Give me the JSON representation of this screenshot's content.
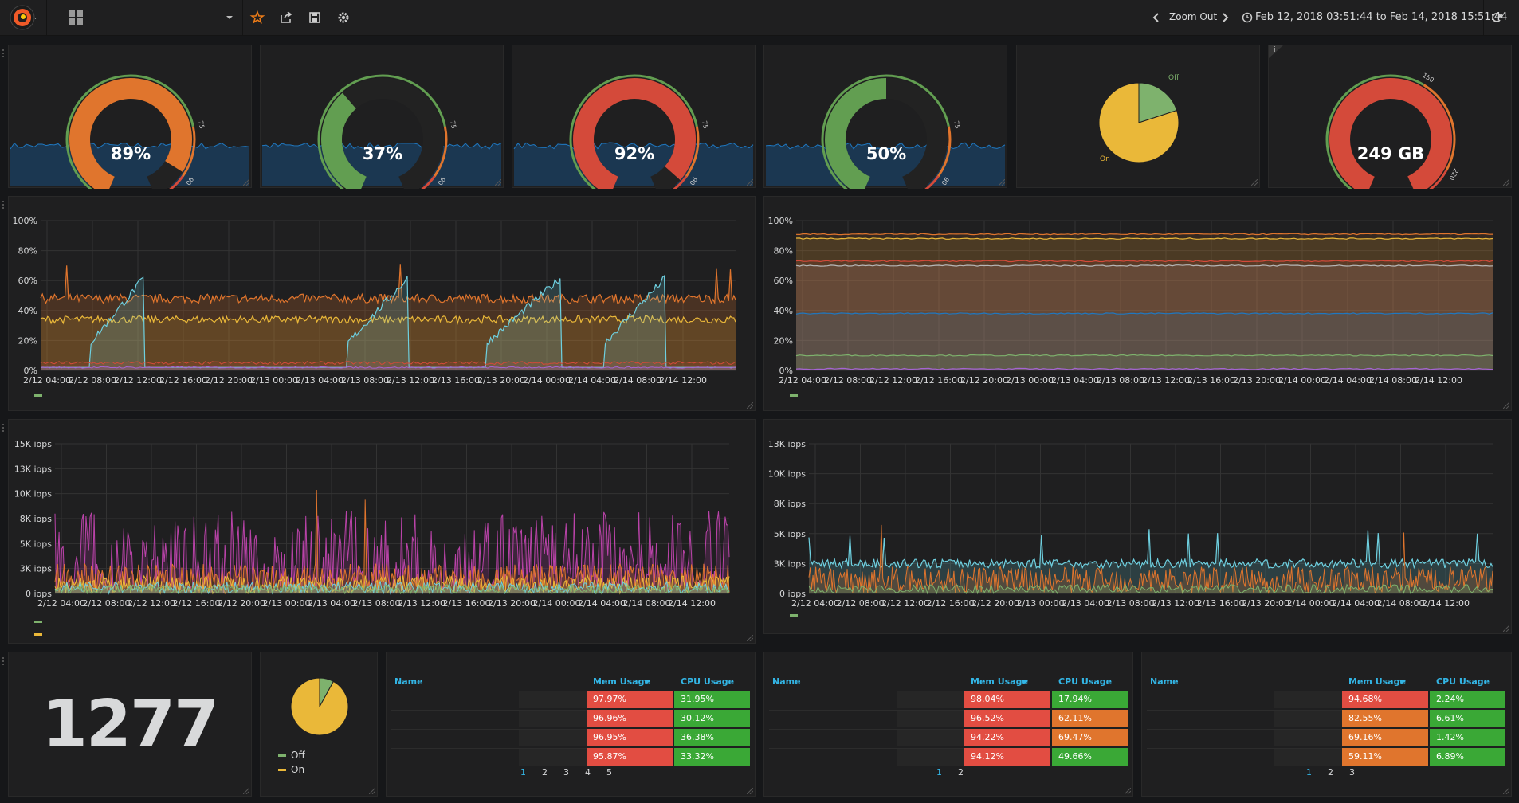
{
  "navbar": {
    "zoom_label": "Zoom Out",
    "time_range": "Feb 12, 2018 03:51:44 to Feb 14, 2018 15:51:44"
  },
  "colors": {
    "green": "#629e51",
    "orange": "#e0752d",
    "red": "#d44a3a",
    "yellow": "#eab839",
    "blue": "#1f78c1",
    "cell_red": "#e24d42",
    "cell_orange": "#e0752d",
    "cell_green": "#3aa836"
  },
  "gauges": [
    {
      "value_text": "89%",
      "value": 89,
      "max": 100,
      "color": "#e0752d",
      "ticks": [
        "0",
        "75",
        "90",
        "100"
      ]
    },
    {
      "value_text": "37%",
      "value": 37,
      "max": 100,
      "color": "#629e51",
      "ticks": [
        "0",
        "75",
        "90",
        "100"
      ]
    },
    {
      "value_text": "92%",
      "value": 92,
      "max": 100,
      "color": "#d44a3a",
      "ticks": [
        "0",
        "75",
        "90",
        "100"
      ]
    },
    {
      "value_text": "50%",
      "value": 50,
      "max": 100,
      "color": "#629e51",
      "ticks": [
        "0",
        "75",
        "90",
        "100"
      ]
    }
  ],
  "disk_gauge": {
    "value_text": "249 GB",
    "value": 249,
    "max": 250,
    "color": "#d44a3a",
    "ticks": [
      "0",
      "150",
      "220",
      "250"
    ]
  },
  "pie_top": {
    "labels": [
      "Off",
      "On"
    ],
    "values": [
      20,
      80
    ],
    "info_icon": "i"
  },
  "pie_bottom": {
    "labels": [
      "Off",
      "On"
    ],
    "values": [
      8,
      92
    ]
  },
  "big_stat": {
    "value": "1277"
  },
  "chart_cpu_left": {
    "y_ticks": [
      "100%",
      "80%",
      "60%",
      "40%",
      "20%",
      "0%"
    ],
    "x_ticks": [
      "2/12 04:00",
      "2/12 08:00",
      "2/12 12:00",
      "2/12 16:00",
      "2/12 20:00",
      "2/13 00:00",
      "2/13 04:00",
      "2/13 08:00",
      "2/13 12:00",
      "2/13 16:00",
      "2/13 20:00",
      "2/14 00:00",
      "2/14 04:00",
      "2/14 08:00",
      "2/14 12:00"
    ]
  },
  "chart_mem_right": {
    "y_ticks": [
      "100%",
      "80%",
      "60%",
      "40%",
      "20%",
      "0%"
    ],
    "x_ticks": [
      "2/12 04:00",
      "2/12 08:00",
      "2/12 12:00",
      "2/12 16:00",
      "2/12 20:00",
      "2/13 00:00",
      "2/13 04:00",
      "2/13 08:00",
      "2/13 12:00",
      "2/13 16:00",
      "2/13 20:00",
      "2/14 00:00",
      "2/14 04:00",
      "2/14 08:00",
      "2/14 12:00"
    ]
  },
  "chart_iops_left": {
    "y_ticks": [
      "15K iops",
      "13K iops",
      "10K iops",
      "8K iops",
      "5K iops",
      "3K iops",
      "0 iops"
    ],
    "x_ticks": [
      "2/12 04:00",
      "2/12 08:00",
      "2/12 12:00",
      "2/12 16:00",
      "2/12 20:00",
      "2/13 00:00",
      "2/13 04:00",
      "2/13 08:00",
      "2/13 12:00",
      "2/13 16:00",
      "2/13 20:00",
      "2/14 00:00",
      "2/14 04:00",
      "2/14 08:00",
      "2/14 12:00"
    ]
  },
  "chart_iops_right": {
    "y_ticks": [
      "13K iops",
      "10K iops",
      "8K iops",
      "5K iops",
      "3K iops",
      "0 iops"
    ],
    "x_ticks": [
      "2/12 04:00",
      "2/12 08:00",
      "2/12 12:00",
      "2/12 16:00",
      "2/12 20:00",
      "2/13 00:00",
      "2/13 04:00",
      "2/13 08:00",
      "2/13 12:00",
      "2/13 16:00",
      "2/13 20:00",
      "2/14 00:00",
      "2/14 04:00",
      "2/14 08:00",
      "2/14 12:00"
    ]
  },
  "tables": [
    {
      "headers": [
        "Name",
        "Mem Usage",
        "CPU Usage"
      ],
      "rows": [
        {
          "mem": "97.97%",
          "cpu": "31.95%",
          "mem_color": "#e24d42",
          "cpu_color": "#3aa836"
        },
        {
          "mem": "96.96%",
          "cpu": "30.12%",
          "mem_color": "#e24d42",
          "cpu_color": "#3aa836"
        },
        {
          "mem": "96.95%",
          "cpu": "36.38%",
          "mem_color": "#e24d42",
          "cpu_color": "#3aa836"
        },
        {
          "mem": "95.87%",
          "cpu": "33.32%",
          "mem_color": "#e24d42",
          "cpu_color": "#3aa836"
        }
      ],
      "pages": [
        "1",
        "2",
        "3",
        "4",
        "5"
      ]
    },
    {
      "headers": [
        "Name",
        "Mem Usage",
        "CPU Usage"
      ],
      "rows": [
        {
          "mem": "98.04%",
          "cpu": "17.94%",
          "mem_color": "#e24d42",
          "cpu_color": "#3aa836"
        },
        {
          "mem": "96.52%",
          "cpu": "62.11%",
          "mem_color": "#e24d42",
          "cpu_color": "#e0752d"
        },
        {
          "mem": "94.22%",
          "cpu": "69.47%",
          "mem_color": "#e24d42",
          "cpu_color": "#e0752d"
        },
        {
          "mem": "94.12%",
          "cpu": "49.66%",
          "mem_color": "#e24d42",
          "cpu_color": "#3aa836"
        }
      ],
      "pages": [
        "1",
        "2"
      ]
    },
    {
      "headers": [
        "Name",
        "Mem Usage",
        "CPU Usage"
      ],
      "rows": [
        {
          "mem": "94.68%",
          "cpu": "2.24%",
          "mem_color": "#e24d42",
          "cpu_color": "#3aa836"
        },
        {
          "mem": "82.55%",
          "cpu": "6.61%",
          "mem_color": "#e0752d",
          "cpu_color": "#3aa836"
        },
        {
          "mem": "69.16%",
          "cpu": "1.42%",
          "mem_color": "#e0752d",
          "cpu_color": "#3aa836"
        },
        {
          "mem": "59.11%",
          "cpu": "6.89%",
          "mem_color": "#e0752d",
          "cpu_color": "#3aa836"
        }
      ],
      "pages": [
        "1",
        "2",
        "3"
      ]
    }
  ]
}
